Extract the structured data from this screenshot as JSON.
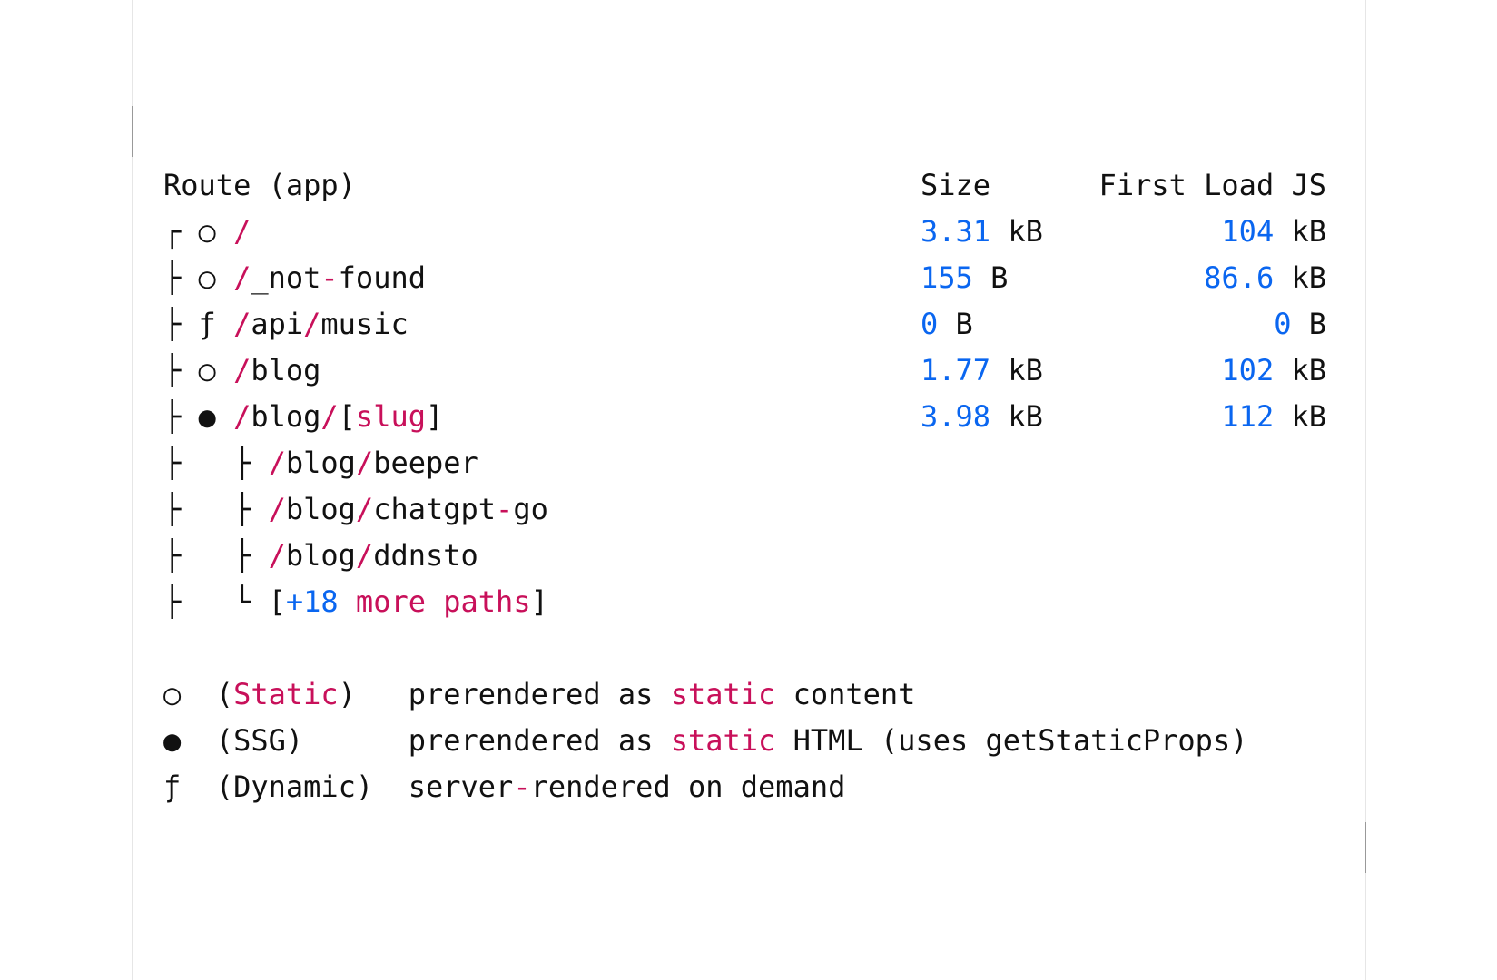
{
  "colors": {
    "accent_pink": "#c8105a",
    "accent_blue": "#0a66f0",
    "text": "#111111"
  },
  "header": {
    "route": "Route (app)",
    "size": "Size",
    "first_load": "First Load JS"
  },
  "routes": [
    {
      "tree": "┌",
      "type": "○",
      "path": "/",
      "size_value": "3.31",
      "size_unit": "kB",
      "fl_value": "104",
      "fl_unit": "kB"
    },
    {
      "tree": "├",
      "type": "○",
      "path": "/_not-found",
      "size_value": "155",
      "size_unit": "B",
      "fl_value": "86.6",
      "fl_unit": "kB"
    },
    {
      "tree": "├",
      "type": "ƒ",
      "path": "/api/music",
      "size_value": "0",
      "size_unit": "B",
      "fl_value": "0",
      "fl_unit": "B"
    },
    {
      "tree": "├",
      "type": "○",
      "path": "/blog",
      "size_value": "1.77",
      "size_unit": "kB",
      "fl_value": "102",
      "fl_unit": "kB"
    },
    {
      "tree": "├",
      "type": "●",
      "path": "/blog/[slug]",
      "size_value": "3.98",
      "size_unit": "kB",
      "fl_value": "112",
      "fl_unit": "kB"
    },
    {
      "tree": "├",
      "subtree": "├",
      "path": "/blog/beeper"
    },
    {
      "tree": "├",
      "subtree": "├",
      "path": "/blog/chatgpt-go"
    },
    {
      "tree": "├",
      "subtree": "├",
      "path": "/blog/ddnsto"
    },
    {
      "tree": "├",
      "subtree": "└",
      "more_count": "+18",
      "more_label": "more paths"
    }
  ],
  "legend": [
    {
      "symbol": "○",
      "name": "Static",
      "name_highlight": true,
      "description": "prerendered as static content"
    },
    {
      "symbol": "●",
      "name": "SSG",
      "name_highlight": false,
      "description": "prerendered as static HTML (uses getStaticProps)"
    },
    {
      "symbol": "ƒ",
      "name": "Dynamic",
      "name_highlight": false,
      "description": "server-rendered on demand"
    }
  ]
}
